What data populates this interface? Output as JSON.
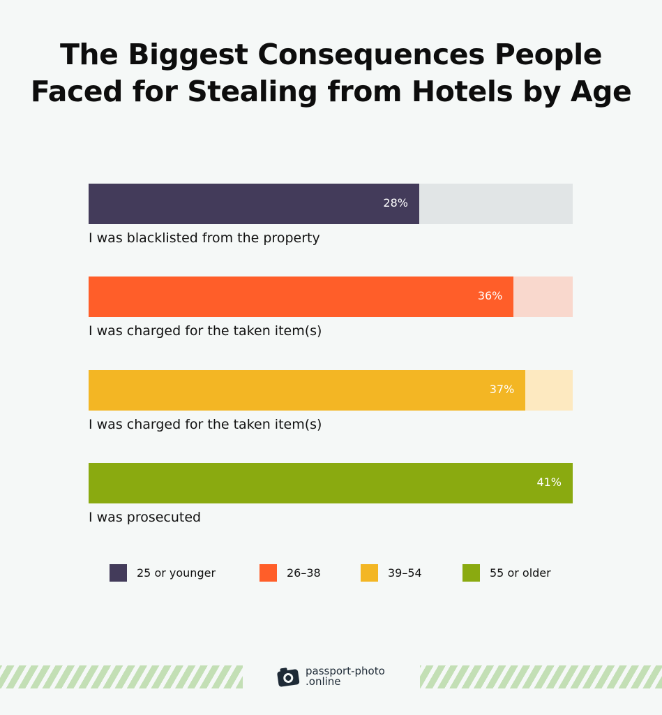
{
  "chart_data": {
    "type": "bar",
    "orientation": "horizontal",
    "title": "The Biggest Consequences People Faced for Stealing from Hotels by Age",
    "title_lines": [
      "The Biggest Consequences People",
      "Faced for Stealing from Hotels by Age"
    ],
    "categories": [
      "I was blacklisted from the property",
      "I was charged for the taken item(s)",
      "I was charged for the taken item(s)",
      "I was prosecuted"
    ],
    "values": [
      28,
      36,
      37,
      41
    ],
    "value_labels": [
      "28%",
      "36%",
      "37%",
      "41%"
    ],
    "series_names": [
      "25 or younger",
      "26–38",
      "39–54",
      "55 or older"
    ],
    "colors": [
      "#433b5a",
      "#ff5e29",
      "#f3b624",
      "#8aaa10"
    ],
    "track_colors": [
      "#e1e5e6",
      "#f9d8cd",
      "#fde9c0",
      "#dfe8c2"
    ],
    "xlim": [
      0,
      41
    ],
    "grid": false,
    "legend": "bottom"
  },
  "branding": {
    "logo_line1": "passport-photo",
    "logo_line2": ".online"
  }
}
